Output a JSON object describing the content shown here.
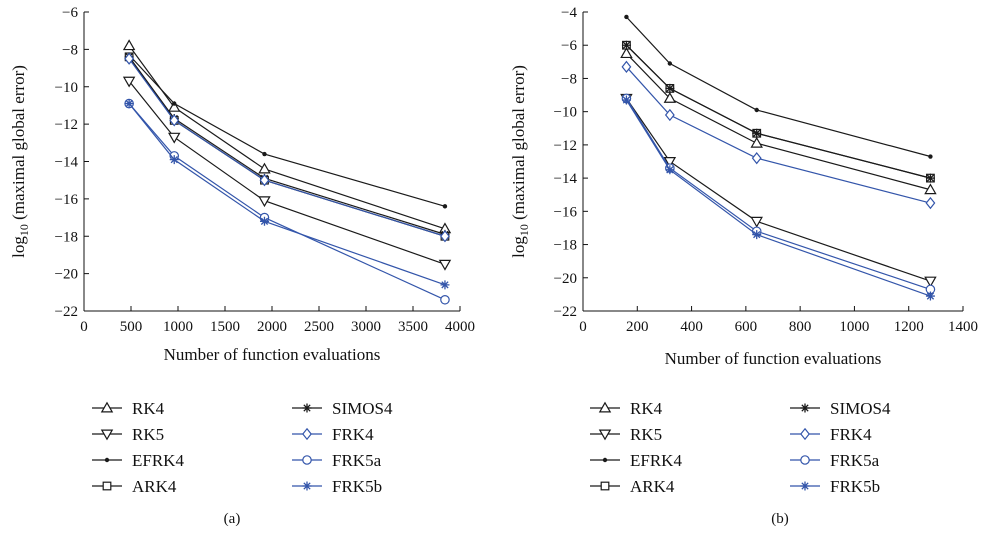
{
  "chart_data": [
    {
      "type": "line",
      "caption": "(a)",
      "xlabel": "Number of function evaluations",
      "ylabel_base": "log",
      "ylabel_sub": "10",
      "ylabel_rest": " (maximal global error)",
      "xlim": [
        0,
        4000
      ],
      "ylim": [
        -22,
        -6
      ],
      "xticks": [
        0,
        500,
        1000,
        1500,
        2000,
        2500,
        3000,
        3500,
        4000
      ],
      "yticks": [
        -6,
        -8,
        -10,
        -12,
        -14,
        -16,
        -18,
        -20,
        -22
      ],
      "x": [
        480,
        960,
        1920,
        3840
      ],
      "series": [
        {
          "name": "RK4",
          "marker": "tri-up",
          "color": "#1a1a1a",
          "values": [
            -7.8,
            -11.1,
            -14.4,
            -17.6
          ]
        },
        {
          "name": "RK5",
          "marker": "tri-down",
          "color": "#1a1a1a",
          "values": [
            -9.7,
            -12.7,
            -16.1,
            -19.5
          ]
        },
        {
          "name": "EFRK4",
          "marker": "dot",
          "color": "#1a1a1a",
          "values": [
            -8.3,
            -10.9,
            -13.6,
            -16.4
          ]
        },
        {
          "name": "ARK4",
          "marker": "square",
          "color": "#1a1a1a",
          "values": [
            -8.4,
            -11.8,
            -15.0,
            -18.0
          ]
        },
        {
          "name": "SIMOS4",
          "marker": "star",
          "color": "#1a1a1a",
          "values": [
            -8.4,
            -11.7,
            -14.9,
            -17.9
          ]
        },
        {
          "name": "FRK4",
          "marker": "diamond",
          "color": "#3355aa",
          "values": [
            -8.5,
            -11.8,
            -15.0,
            -18.0
          ]
        },
        {
          "name": "FRK5a",
          "marker": "circle",
          "color": "#3355aa",
          "values": [
            -10.9,
            -13.7,
            -17.0,
            -21.4
          ]
        },
        {
          "name": "FRK5b",
          "marker": "star",
          "color": "#3355aa",
          "values": [
            -10.9,
            -13.9,
            -17.2,
            -20.6
          ]
        }
      ]
    },
    {
      "type": "line",
      "caption": "(b)",
      "xlabel": "Number of function evaluations",
      "ylabel_base": "log",
      "ylabel_sub": "10",
      "ylabel_rest": " (maximal global error)",
      "xlim": [
        0,
        1400
      ],
      "ylim": [
        -22,
        -4
      ],
      "xticks": [
        0,
        200,
        400,
        600,
        800,
        1000,
        1200,
        1400
      ],
      "yticks": [
        -4,
        -6,
        -8,
        -10,
        -12,
        -14,
        -16,
        -18,
        -20,
        -22
      ],
      "x": [
        160,
        320,
        640,
        1280
      ],
      "series": [
        {
          "name": "RK4",
          "marker": "tri-up",
          "color": "#1a1a1a",
          "values": [
            -6.5,
            -9.2,
            -11.9,
            -14.7
          ]
        },
        {
          "name": "RK5",
          "marker": "tri-down",
          "color": "#1a1a1a",
          "values": [
            -9.2,
            -13.0,
            -16.6,
            -20.2
          ]
        },
        {
          "name": "EFRK4",
          "marker": "dot",
          "color": "#1a1a1a",
          "values": [
            -4.3,
            -7.1,
            -9.9,
            -12.7
          ]
        },
        {
          "name": "ARK4",
          "marker": "square",
          "color": "#1a1a1a",
          "values": [
            -6.0,
            -8.6,
            -11.3,
            -14.0
          ]
        },
        {
          "name": "SIMOS4",
          "marker": "star",
          "color": "#1a1a1a",
          "values": [
            -6.0,
            -8.6,
            -11.3,
            -14.0
          ]
        },
        {
          "name": "FRK4",
          "marker": "diamond",
          "color": "#3355aa",
          "values": [
            -7.3,
            -10.2,
            -12.8,
            -15.5
          ]
        },
        {
          "name": "FRK5a",
          "marker": "circle",
          "color": "#3355aa",
          "values": [
            -9.2,
            -13.4,
            -17.2,
            -20.7
          ]
        },
        {
          "name": "FRK5b",
          "marker": "star",
          "color": "#3355aa",
          "values": [
            -9.3,
            -13.5,
            -17.4,
            -21.1
          ]
        }
      ]
    }
  ]
}
